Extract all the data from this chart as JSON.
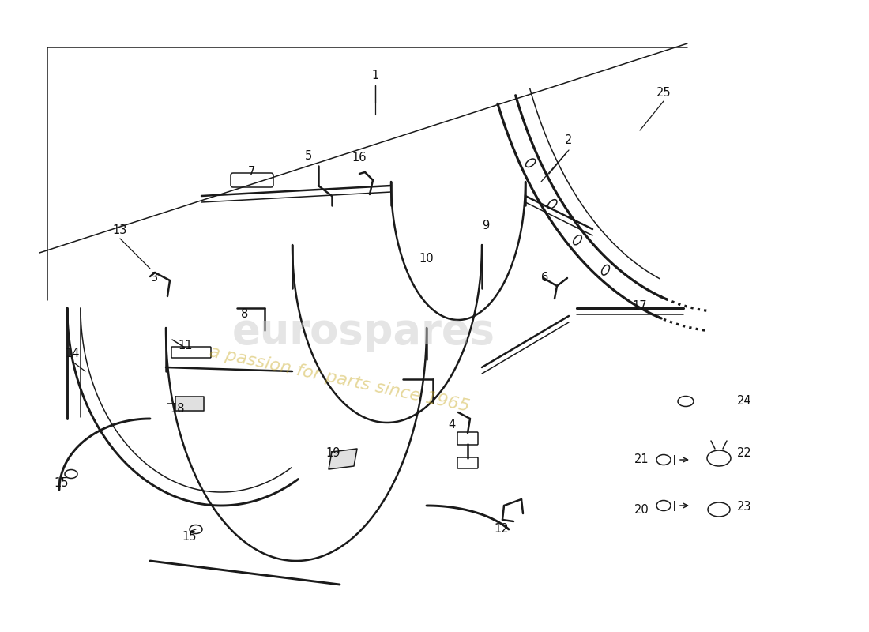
{
  "bg_color": "#ffffff",
  "line_color": "#1a1a1a",
  "lw_main": 1.8,
  "lw_thin": 1.1,
  "label_fontsize": 10.5
}
